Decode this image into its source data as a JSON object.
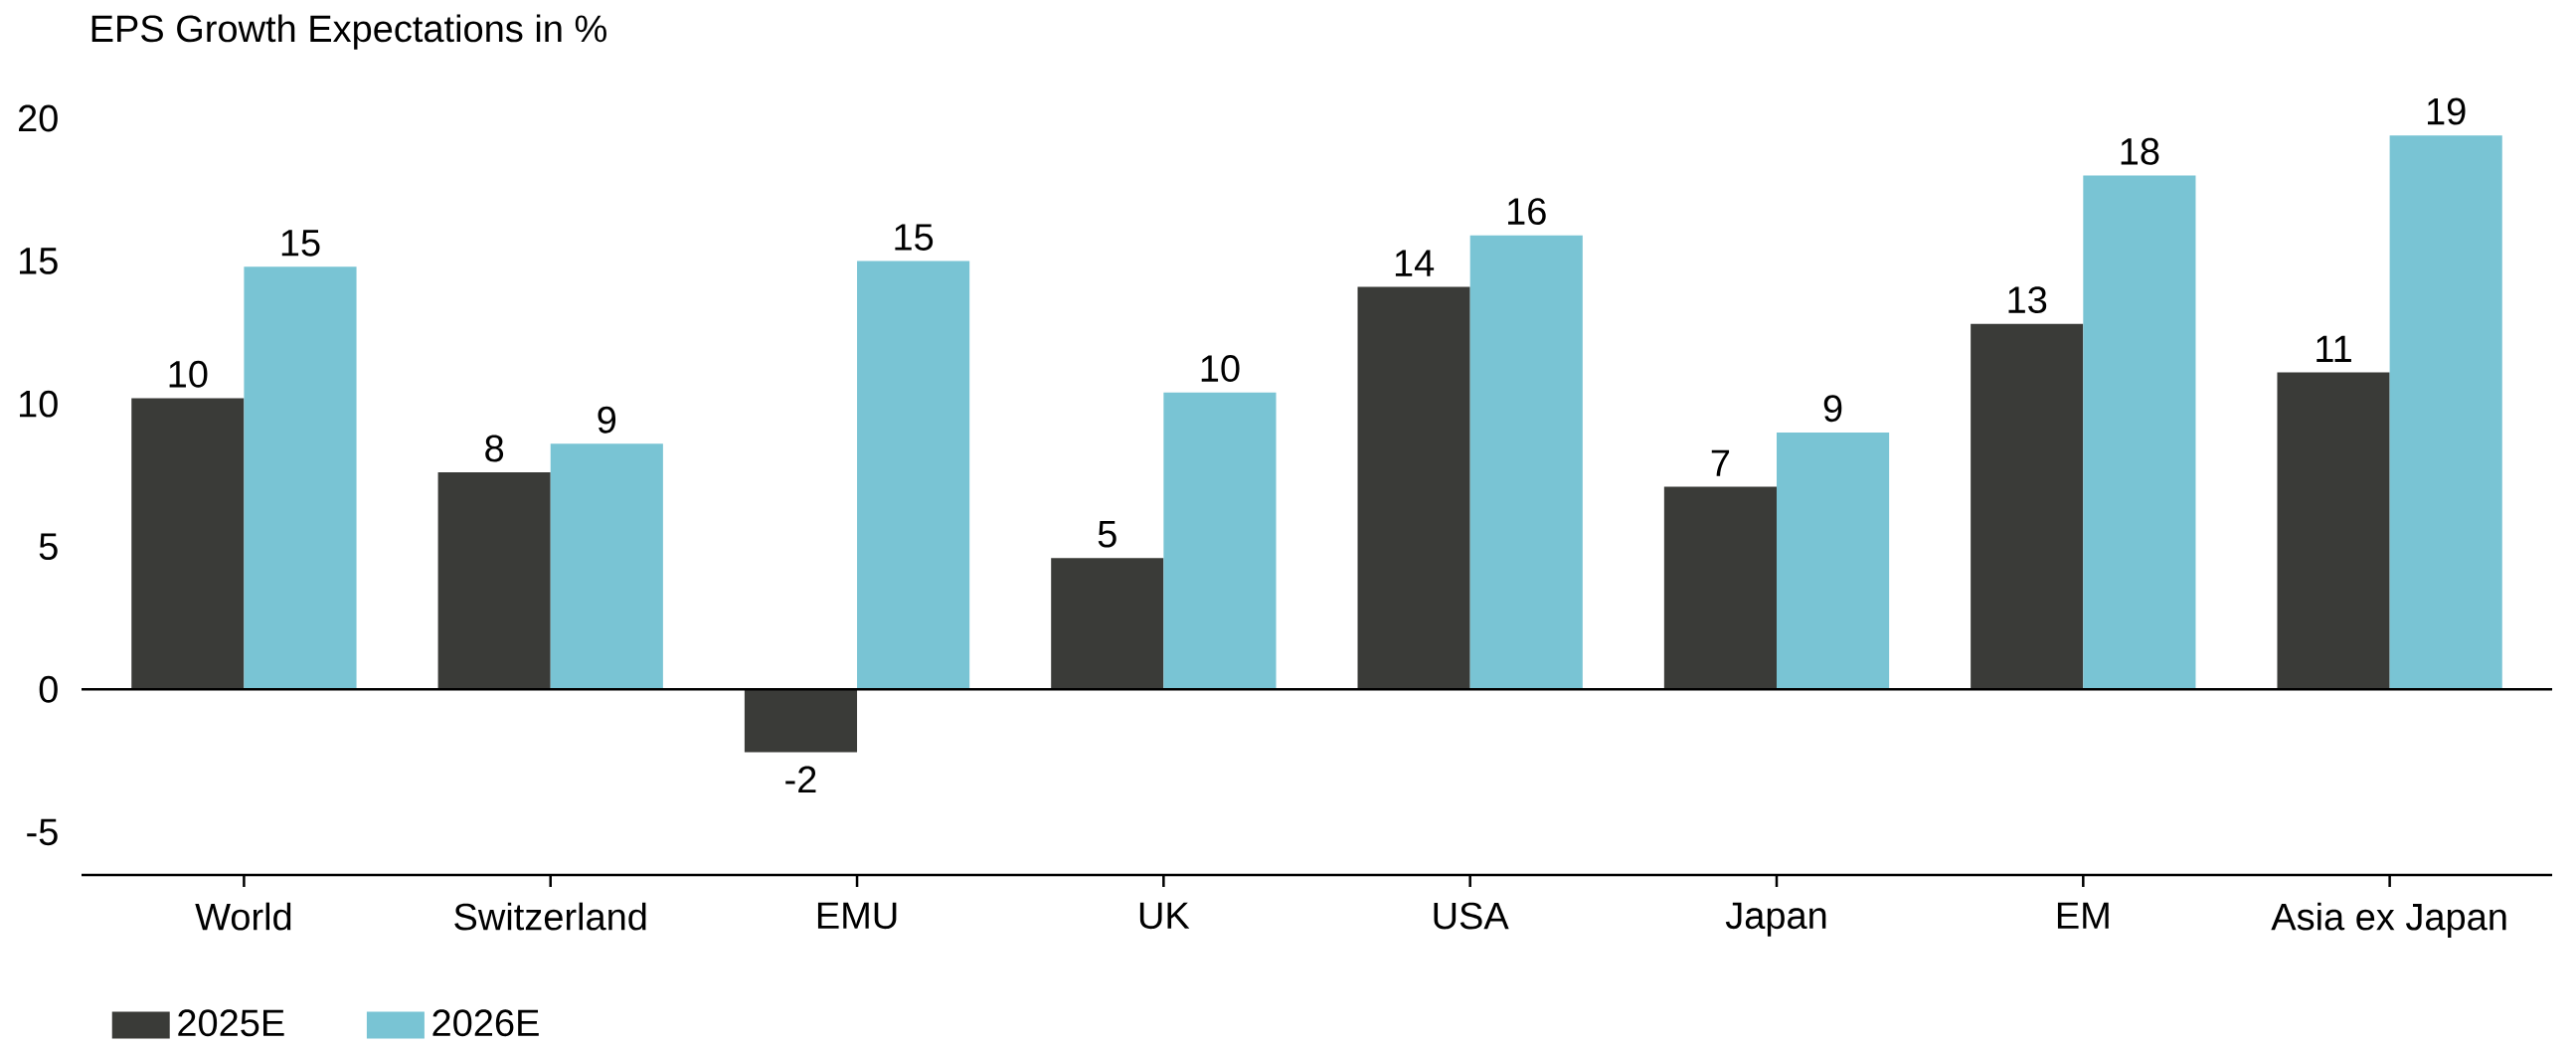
{
  "chart_data": {
    "type": "bar",
    "title": "EPS Growth Expectations in %",
    "categories": [
      "World",
      "Switzerland",
      "EMU",
      "UK",
      "USA",
      "Japan",
      "EM",
      "Asia ex Japan"
    ],
    "series": [
      {
        "name": "2025E",
        "color": "#3a3b38",
        "values": [
          10.2,
          7.6,
          -2.2,
          4.6,
          14.1,
          7.1,
          12.8,
          11.1
        ],
        "value_labels": [
          "10",
          "8",
          "-2",
          "5",
          "14",
          "7",
          "13",
          "11"
        ]
      },
      {
        "name": "2026E",
        "color": "#79c4d4",
        "values": [
          14.8,
          8.6,
          15.0,
          10.4,
          15.9,
          9.0,
          18.0,
          19.4
        ],
        "value_labels": [
          "15",
          "9",
          "15",
          "10",
          "16",
          "9",
          "18",
          "19"
        ]
      }
    ],
    "ylim": [
      -6.5,
      20
    ],
    "yticks": [
      -5,
      0,
      5,
      10,
      15,
      20
    ],
    "legend": "bottom left"
  }
}
